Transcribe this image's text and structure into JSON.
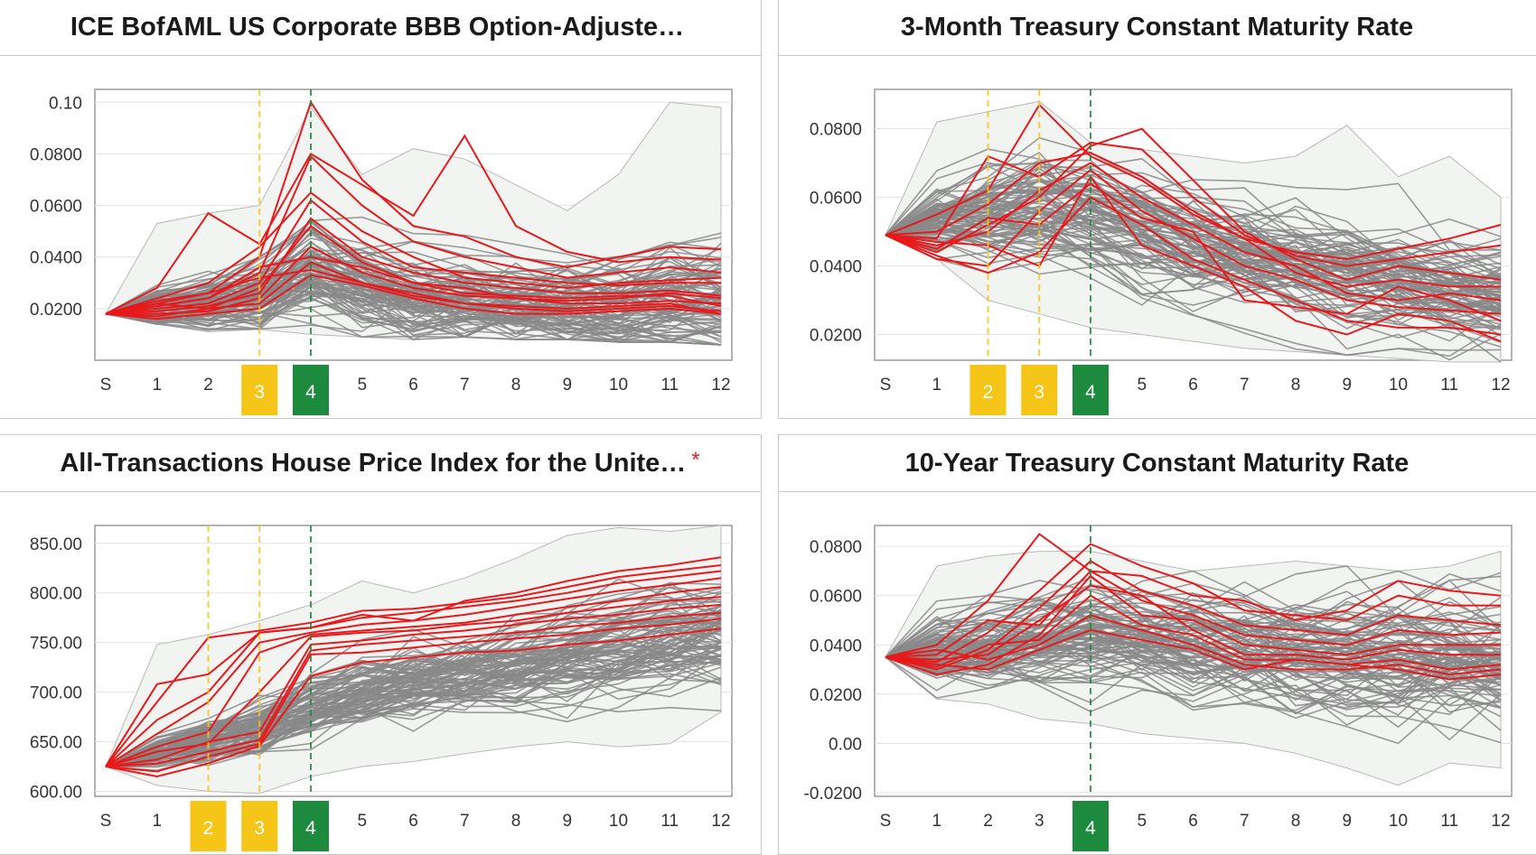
{
  "panels": [
    {
      "title": "ICE BofAML US Corporate BBB Option-Adjuste…",
      "asterisk": "",
      "chart_data": {
        "type": "line",
        "x": [
          "S",
          "1",
          "2",
          "3",
          "4",
          "5",
          "6",
          "7",
          "8",
          "9",
          "10",
          "11",
          "12"
        ],
        "ylim": [
          0.0,
          0.105
        ],
        "yticks": [
          0.02,
          0.04,
          0.06,
          0.08,
          0.1
        ],
        "ytick_labels": [
          "0.0200",
          "0.0400",
          "0.0600",
          "0.0800",
          "0.10"
        ],
        "highlighted_steps": [
          {
            "step": "3",
            "color": "#f5c518"
          },
          {
            "step": "4",
            "color": "#1e8a3e"
          }
        ],
        "band_upper": [
          0.018,
          0.053,
          0.057,
          0.06,
          0.098,
          0.072,
          0.082,
          0.078,
          0.068,
          0.058,
          0.072,
          0.1,
          0.098
        ],
        "band_lower": [
          0.018,
          0.014,
          0.011,
          0.012,
          0.01,
          0.009,
          0.008,
          0.009,
          0.008,
          0.008,
          0.007,
          0.007,
          0.006
        ],
        "start_value": 0.018,
        "center": [
          0.018,
          0.02,
          0.022,
          0.026,
          0.035,
          0.028,
          0.024,
          0.024,
          0.022,
          0.022,
          0.022,
          0.023,
          0.023
        ],
        "spread": [
          0.0,
          0.006,
          0.008,
          0.011,
          0.016,
          0.013,
          0.012,
          0.013,
          0.012,
          0.013,
          0.014,
          0.016,
          0.016
        ],
        "highlight_series": [
          [
            0.018,
            0.022,
            0.026,
            0.04,
            0.1,
            0.07,
            0.052,
            0.048,
            0.04,
            0.036,
            0.04,
            0.044,
            0.043
          ],
          [
            0.018,
            0.028,
            0.057,
            0.045,
            0.08,
            0.068,
            0.056,
            0.087,
            0.052,
            0.042,
            0.038,
            0.04,
            0.039
          ],
          [
            0.018,
            0.021,
            0.024,
            0.034,
            0.079,
            0.06,
            0.046,
            0.04,
            0.036,
            0.032,
            0.034,
            0.036,
            0.034
          ],
          [
            0.018,
            0.024,
            0.03,
            0.044,
            0.065,
            0.05,
            0.04,
            0.032,
            0.03,
            0.028,
            0.03,
            0.031,
            0.032
          ],
          [
            0.018,
            0.02,
            0.022,
            0.03,
            0.062,
            0.046,
            0.036,
            0.034,
            0.032,
            0.03,
            0.029,
            0.03,
            0.03
          ],
          [
            0.018,
            0.019,
            0.021,
            0.026,
            0.055,
            0.04,
            0.034,
            0.03,
            0.028,
            0.026,
            0.026,
            0.027,
            0.025
          ],
          [
            0.018,
            0.022,
            0.02,
            0.028,
            0.052,
            0.038,
            0.03,
            0.028,
            0.024,
            0.023,
            0.024,
            0.026,
            0.024
          ],
          [
            0.018,
            0.018,
            0.019,
            0.024,
            0.044,
            0.034,
            0.028,
            0.025,
            0.024,
            0.022,
            0.022,
            0.023,
            0.022
          ],
          [
            0.018,
            0.021,
            0.024,
            0.036,
            0.04,
            0.036,
            0.03,
            0.026,
            0.025,
            0.024,
            0.025,
            0.025,
            0.021
          ],
          [
            0.018,
            0.017,
            0.02,
            0.022,
            0.038,
            0.03,
            0.026,
            0.022,
            0.02,
            0.019,
            0.02,
            0.021,
            0.019
          ],
          [
            0.018,
            0.023,
            0.026,
            0.032,
            0.035,
            0.03,
            0.025,
            0.022,
            0.021,
            0.02,
            0.021,
            0.022,
            0.018
          ],
          [
            0.018,
            0.016,
            0.018,
            0.02,
            0.033,
            0.029,
            0.024,
            0.02,
            0.018,
            0.018,
            0.019,
            0.02,
            0.018
          ]
        ]
      }
    },
    {
      "title": "3-Month Treasury Constant Maturity Rate",
      "asterisk": "",
      "chart_data": {
        "type": "line",
        "x": [
          "S",
          "1",
          "2",
          "3",
          "4",
          "5",
          "6",
          "7",
          "8",
          "9",
          "10",
          "11",
          "12"
        ],
        "ylim": [
          0.0125,
          0.0915
        ],
        "yticks": [
          0.02,
          0.04,
          0.06,
          0.08
        ],
        "ytick_labels": [
          "0.0200",
          "0.0400",
          "0.0600",
          "0.0800"
        ],
        "highlighted_steps": [
          {
            "step": "2",
            "color": "#f5c518"
          },
          {
            "step": "3",
            "color": "#f5c518"
          },
          {
            "step": "4",
            "color": "#1e8a3e"
          }
        ],
        "band_upper": [
          0.049,
          0.082,
          0.085,
          0.088,
          0.076,
          0.074,
          0.072,
          0.07,
          0.072,
          0.081,
          0.066,
          0.072,
          0.06
        ],
        "band_lower": [
          0.049,
          0.042,
          0.03,
          0.026,
          0.022,
          0.02,
          0.018,
          0.016,
          0.015,
          0.014,
          0.013,
          0.012,
          0.012
        ],
        "start_value": 0.049,
        "center": [
          0.049,
          0.053,
          0.054,
          0.055,
          0.053,
          0.049,
          0.045,
          0.042,
          0.04,
          0.038,
          0.036,
          0.034,
          0.032
        ],
        "spread": [
          0.0,
          0.008,
          0.011,
          0.012,
          0.011,
          0.011,
          0.011,
          0.011,
          0.011,
          0.011,
          0.011,
          0.011,
          0.011
        ],
        "highlight_series": [
          [
            0.049,
            0.055,
            0.062,
            0.087,
            0.072,
            0.065,
            0.055,
            0.048,
            0.044,
            0.042,
            0.045,
            0.048,
            0.052
          ],
          [
            0.049,
            0.048,
            0.072,
            0.066,
            0.076,
            0.074,
            0.06,
            0.049,
            0.043,
            0.04,
            0.042,
            0.044,
            0.046
          ],
          [
            0.049,
            0.044,
            0.052,
            0.06,
            0.075,
            0.08,
            0.065,
            0.05,
            0.042,
            0.036,
            0.04,
            0.038,
            0.036
          ],
          [
            0.049,
            0.05,
            0.058,
            0.07,
            0.073,
            0.066,
            0.056,
            0.048,
            0.038,
            0.034,
            0.036,
            0.034,
            0.034
          ],
          [
            0.049,
            0.046,
            0.05,
            0.062,
            0.07,
            0.06,
            0.052,
            0.044,
            0.04,
            0.032,
            0.03,
            0.032,
            0.03
          ],
          [
            0.049,
            0.042,
            0.04,
            0.056,
            0.068,
            0.056,
            0.048,
            0.04,
            0.036,
            0.03,
            0.028,
            0.027,
            0.026
          ],
          [
            0.049,
            0.045,
            0.054,
            0.052,
            0.064,
            0.054,
            0.05,
            0.03,
            0.028,
            0.026,
            0.034,
            0.03,
            0.024
          ],
          [
            0.049,
            0.043,
            0.038,
            0.044,
            0.06,
            0.052,
            0.042,
            0.036,
            0.03,
            0.024,
            0.022,
            0.022,
            0.02
          ],
          [
            0.049,
            0.047,
            0.046,
            0.04,
            0.066,
            0.046,
            0.04,
            0.034,
            0.024,
            0.02,
            0.026,
            0.024,
            0.018
          ]
        ]
      }
    },
    {
      "title": "All-Transactions House Price Index for the Unite…",
      "asterisk": "*",
      "chart_data": {
        "type": "line",
        "x": [
          "S",
          "1",
          "2",
          "3",
          "4",
          "5",
          "6",
          "7",
          "8",
          "9",
          "10",
          "11",
          "12"
        ],
        "ylim": [
          595,
          868
        ],
        "yticks": [
          600,
          650,
          700,
          750,
          800,
          850
        ],
        "ytick_labels": [
          "600.00",
          "650.00",
          "700.00",
          "750.00",
          "800.00",
          "850.00"
        ],
        "highlighted_steps": [
          {
            "step": "2",
            "color": "#f5c518"
          },
          {
            "step": "3",
            "color": "#f5c518"
          },
          {
            "step": "4",
            "color": "#1e8a3e"
          }
        ],
        "band_upper": [
          625,
          748,
          758,
          772,
          788,
          812,
          800,
          815,
          835,
          858,
          866,
          862,
          868
        ],
        "band_lower": [
          625,
          606,
          600,
          598,
          615,
          625,
          630,
          638,
          645,
          650,
          645,
          648,
          680
        ],
        "start_value": 625,
        "center": [
          625,
          640,
          652,
          665,
          685,
          700,
          712,
          720,
          728,
          738,
          745,
          752,
          758
        ],
        "spread": [
          0,
          12,
          17,
          22,
          26,
          28,
          28,
          30,
          32,
          33,
          34,
          35,
          36
        ],
        "highlight_series": [
          [
            625,
            708,
            718,
            760,
            765,
            778,
            772,
            792,
            800,
            812,
            822,
            828,
            836
          ],
          [
            625,
            690,
            755,
            762,
            770,
            782,
            784,
            790,
            796,
            806,
            816,
            822,
            828
          ],
          [
            625,
            672,
            700,
            760,
            765,
            775,
            780,
            786,
            792,
            800,
            810,
            816,
            822
          ],
          [
            625,
            658,
            690,
            750,
            760,
            768,
            772,
            778,
            786,
            794,
            802,
            808,
            815
          ],
          [
            625,
            645,
            660,
            740,
            758,
            762,
            766,
            770,
            778,
            786,
            792,
            800,
            806
          ],
          [
            625,
            640,
            648,
            700,
            756,
            760,
            762,
            768,
            772,
            780,
            786,
            792,
            796
          ],
          [
            625,
            632,
            650,
            660,
            748,
            752,
            758,
            762,
            768,
            774,
            778,
            784,
            788
          ],
          [
            625,
            628,
            640,
            652,
            742,
            748,
            752,
            756,
            760,
            766,
            770,
            776,
            780
          ],
          [
            625,
            620,
            635,
            648,
            738,
            740,
            745,
            750,
            754,
            758,
            764,
            768,
            774
          ],
          [
            625,
            615,
            628,
            646,
            716,
            730,
            735,
            740,
            742,
            748,
            752,
            758,
            764
          ]
        ]
      }
    },
    {
      "title": "10-Year Treasury Constant Maturity Rate",
      "asterisk": "",
      "chart_data": {
        "type": "line",
        "x": [
          "S",
          "1",
          "2",
          "3",
          "4",
          "5",
          "6",
          "7",
          "8",
          "9",
          "10",
          "11",
          "12"
        ],
        "ylim": [
          -0.0215,
          0.0885
        ],
        "yticks": [
          -0.02,
          0.0,
          0.02,
          0.04,
          0.06,
          0.08
        ],
        "ytick_labels": [
          "-0.0200",
          "0.00",
          "0.0200",
          "0.0400",
          "0.0600",
          "0.0800"
        ],
        "highlighted_steps": [
          {
            "step": "4",
            "color": "#1e8a3e"
          }
        ],
        "band_upper": [
          0.035,
          0.072,
          0.076,
          0.078,
          0.078,
          0.074,
          0.07,
          0.072,
          0.074,
          0.072,
          0.07,
          0.072,
          0.078
        ],
        "band_lower": [
          0.035,
          0.018,
          0.016,
          0.01,
          0.008,
          0.004,
          0.002,
          0.0,
          -0.004,
          -0.01,
          -0.017,
          -0.008,
          -0.01
        ],
        "start_value": 0.035,
        "center": [
          0.035,
          0.038,
          0.04,
          0.042,
          0.045,
          0.043,
          0.04,
          0.038,
          0.036,
          0.035,
          0.034,
          0.033,
          0.032
        ],
        "spread": [
          0.0,
          0.012,
          0.014,
          0.015,
          0.016,
          0.016,
          0.017,
          0.017,
          0.018,
          0.018,
          0.019,
          0.019,
          0.02
        ],
        "highlight_series": [
          [
            0.035,
            0.04,
            0.058,
            0.085,
            0.07,
            0.068,
            0.06,
            0.058,
            0.05,
            0.054,
            0.066,
            0.062,
            0.06
          ],
          [
            0.035,
            0.033,
            0.045,
            0.062,
            0.081,
            0.072,
            0.065,
            0.054,
            0.052,
            0.05,
            0.06,
            0.056,
            0.056
          ],
          [
            0.035,
            0.03,
            0.038,
            0.055,
            0.074,
            0.062,
            0.056,
            0.048,
            0.046,
            0.044,
            0.052,
            0.05,
            0.048
          ],
          [
            0.035,
            0.036,
            0.05,
            0.048,
            0.07,
            0.058,
            0.052,
            0.044,
            0.042,
            0.04,
            0.046,
            0.044,
            0.045
          ],
          [
            0.035,
            0.028,
            0.032,
            0.044,
            0.068,
            0.052,
            0.05,
            0.04,
            0.038,
            0.036,
            0.04,
            0.04,
            0.04
          ],
          [
            0.035,
            0.034,
            0.036,
            0.05,
            0.064,
            0.06,
            0.046,
            0.036,
            0.036,
            0.034,
            0.038,
            0.036,
            0.036
          ],
          [
            0.035,
            0.031,
            0.04,
            0.042,
            0.06,
            0.048,
            0.044,
            0.034,
            0.034,
            0.032,
            0.034,
            0.03,
            0.032
          ],
          [
            0.035,
            0.038,
            0.034,
            0.04,
            0.052,
            0.046,
            0.04,
            0.032,
            0.03,
            0.03,
            0.032,
            0.028,
            0.03
          ],
          [
            0.035,
            0.032,
            0.03,
            0.038,
            0.046,
            0.042,
            0.038,
            0.03,
            0.034,
            0.032,
            0.03,
            0.026,
            0.028
          ]
        ]
      }
    }
  ],
  "colors": {
    "simulation_line": "#888888",
    "highlight_line": "#e8181b",
    "band_fill": "#f2f4f2",
    "marker_yellow": "#f5c518",
    "marker_green": "#1e8a3e",
    "gridline": "#e3e3e3"
  }
}
